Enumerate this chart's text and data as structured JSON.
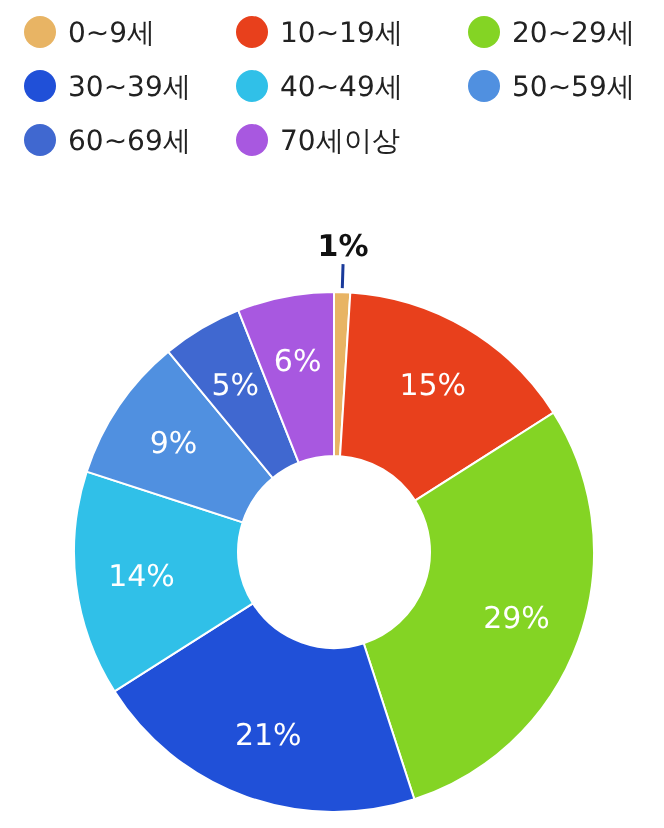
{
  "chart_data": {
    "type": "donut",
    "categories": [
      "0~9세",
      "10~19세",
      "20~29세",
      "30~39세",
      "40~49세",
      "50~59세",
      "60~69세",
      "70세이상"
    ],
    "values": [
      1,
      15,
      29,
      21,
      14,
      9,
      5,
      6
    ],
    "colors": [
      "#e8b464",
      "#e8401c",
      "#84d424",
      "#2050d8",
      "#30c0e8",
      "#5090e0",
      "#4068d0",
      "#a858e0"
    ],
    "value_labels": [
      "1%",
      "15%",
      "29%",
      "21%",
      "14%",
      "9%",
      "5%",
      "6%"
    ],
    "legend": "top"
  }
}
